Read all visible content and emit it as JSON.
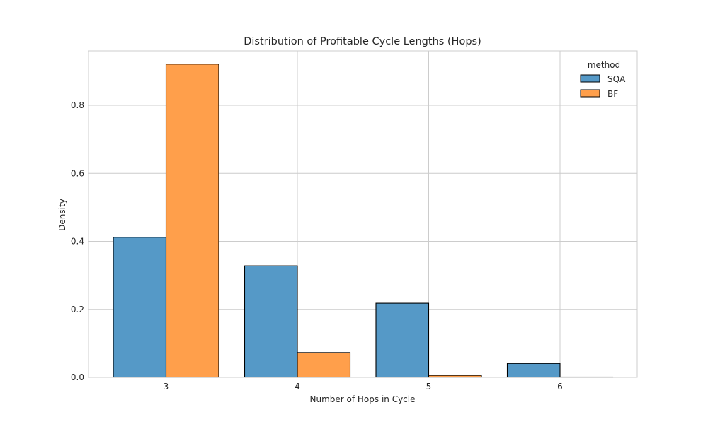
{
  "chart_data": {
    "type": "bar",
    "title": "Distribution of Profitable Cycle Lengths (Hops)",
    "xlabel": "Number of Hops in Cycle",
    "ylabel": "Density",
    "categories": [
      "3",
      "4",
      "5",
      "6"
    ],
    "series": [
      {
        "name": "SQA",
        "color": "#5599c7",
        "values": [
          0.412,
          0.328,
          0.218,
          0.041
        ]
      },
      {
        "name": "BF",
        "color": "#ff9f4b",
        "values": [
          0.921,
          0.073,
          0.006,
          0.001
        ]
      }
    ],
    "ylim": [
      0,
      0.96
    ],
    "yticks": [
      0.0,
      0.2,
      0.4,
      0.6,
      0.8
    ],
    "ytick_labels": [
      "0.0",
      "0.2",
      "0.4",
      "0.6",
      "0.8"
    ],
    "grid": true,
    "legend": {
      "title": "method",
      "placement": "top-right"
    }
  }
}
